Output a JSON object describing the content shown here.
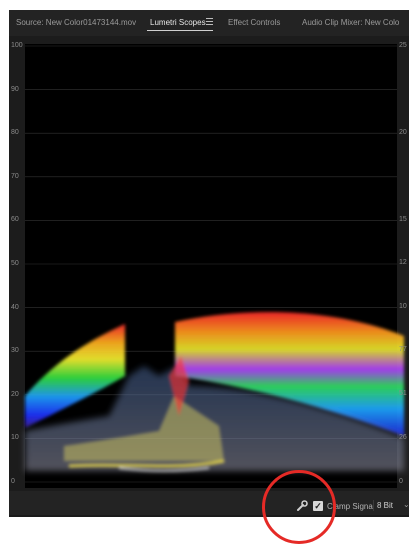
{
  "tabs": [
    {
      "label": "Source: New Color01473144.mov",
      "active": false
    },
    {
      "label": "Lumetri Scopes",
      "active": true
    },
    {
      "label": "Effect Controls",
      "active": false
    },
    {
      "label": "Audio Clip Mixer: New Colo",
      "active": false
    }
  ],
  "menu_icon": "hamburger-menu-icon",
  "scope": {
    "left_scale": [
      "100",
      "90",
      "80",
      "70",
      "60",
      "50",
      "40",
      "30",
      "20",
      "10",
      "0"
    ],
    "right_scale": [
      "25",
      "20",
      "15",
      "12",
      "10",
      "77",
      "51",
      "26",
      "0"
    ]
  },
  "bottom_bar": {
    "wrench_icon": "wrench-icon",
    "clamp_checked": true,
    "clamp_label": "Clamp Signal",
    "bit_depth": "8 Bit",
    "chevron_icon": "chevron-down-icon"
  },
  "annotation": {
    "color": "#e52a26",
    "shape": "circle"
  },
  "colors": {
    "panel_bg": "#232323",
    "scope_bg": "#000000",
    "grid": "#333333"
  }
}
